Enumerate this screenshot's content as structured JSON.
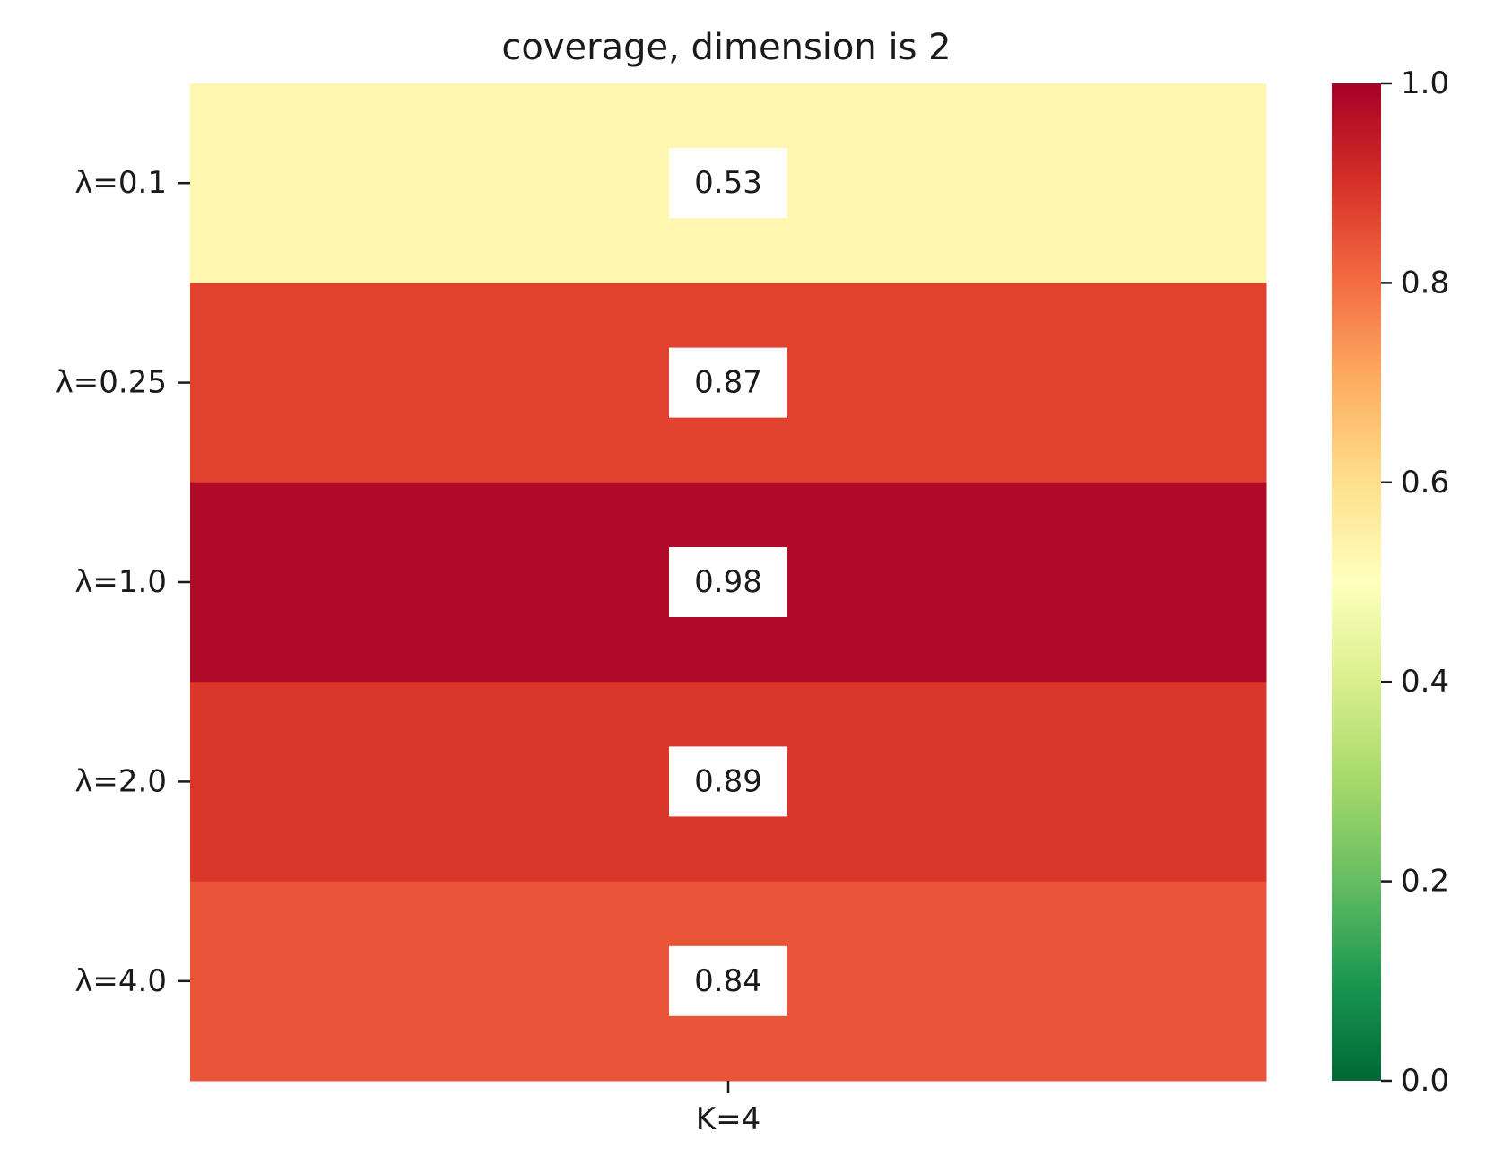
{
  "chart_data": {
    "type": "heatmap",
    "title": "coverage, dimension is 2",
    "x_categories": [
      "K=4"
    ],
    "y_categories": [
      "λ=0.1",
      "λ=0.25",
      "λ=1.0",
      "λ=2.0",
      "λ=4.0"
    ],
    "values": [
      [
        0.53
      ],
      [
        0.87
      ],
      [
        0.98
      ],
      [
        0.89
      ],
      [
        0.84
      ]
    ],
    "value_labels": [
      [
        "0.53"
      ],
      [
        "0.87"
      ],
      [
        "0.98"
      ],
      [
        "0.89"
      ],
      [
        "0.84"
      ]
    ],
    "colorscale": "RdYlGn_r",
    "vmin": 0.0,
    "vmax": 1.0,
    "colorbar_ticks": [
      0.0,
      0.2,
      0.4,
      0.6,
      0.8,
      1.0
    ],
    "colorbar_tick_labels": [
      "0.0",
      "0.2",
      "0.4",
      "0.6",
      "0.8",
      "1.0"
    ],
    "annotation_box_color": "#ffffff"
  }
}
